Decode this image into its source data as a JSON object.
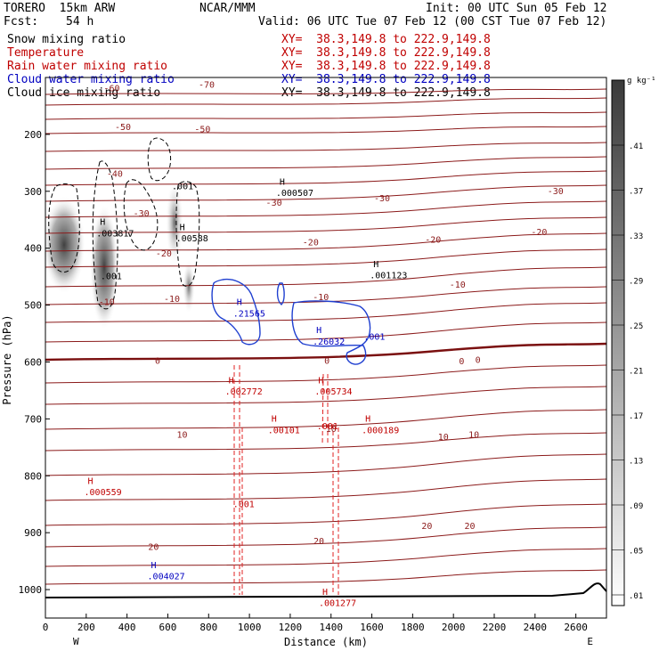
{
  "header": {
    "model": "TORERO  15km ARW",
    "org": "NCAR/MMM",
    "init": "Init: 00 UTC Sun 05 Feb 12",
    "fcst_label": "Fcst:",
    "fcst_value": "54 h",
    "valid": "Valid: 06 UTC Tue 07 Feb 12 (00 CST Tue 07 Feb 12)",
    "fields": [
      {
        "name": "Snow mixing ratio",
        "xy": "XY=  38.3,149.8 to 222.9,149.8",
        "color": "#000000"
      },
      {
        "name": "Temperature",
        "xy": "XY=  38.3,149.8 to 222.9,149.8",
        "color": "#c00000"
      },
      {
        "name": "Rain water mixing ratio",
        "xy": "XY=  38.3,149.8 to 222.9,149.8",
        "color": "#c00000"
      },
      {
        "name": "Cloud water mixing ratio",
        "xy": "XY=  38.3,149.8 to 222.9,149.8",
        "color": "#0000c0"
      },
      {
        "name": "Cloud ice mixing ratio",
        "xy": "XY=  38.3,149.8 to 222.9,149.8",
        "color": "#000000"
      }
    ]
  },
  "chart_data": {
    "type": "contour-cross-section",
    "xlabel": "Distance (km)",
    "ylabel": "Pressure (hPa)",
    "xlim": [
      0,
      2750
    ],
    "ylim": [
      100,
      1050
    ],
    "x_ticks": [
      0,
      200,
      400,
      600,
      800,
      1000,
      1200,
      1400,
      1600,
      1800,
      2000,
      2200,
      2400,
      2600
    ],
    "y_ticks": [
      200,
      300,
      400,
      500,
      600,
      700,
      800,
      900,
      1000
    ],
    "endpoint_labels": [
      {
        "x": 150,
        "text": "W"
      },
      {
        "x": 2670,
        "text": "E"
      }
    ],
    "colorbar": {
      "unit": "g kg⁻¹",
      "ticks": [
        ".01",
        ".05",
        ".09",
        ".13",
        ".17",
        ".21",
        ".25",
        ".29",
        ".33",
        ".37",
        ".41"
      ]
    },
    "temperature_labels": [
      {
        "text": "-70",
        "x": 790,
        "p": 112
      },
      {
        "text": "-60",
        "x": 325,
        "p": 118
      },
      {
        "text": "-50",
        "x": 380,
        "p": 186
      },
      {
        "text": "-50",
        "x": 770,
        "p": 190
      },
      {
        "text": "-40",
        "x": 340,
        "p": 268
      },
      {
        "text": "-30",
        "x": 470,
        "p": 338
      },
      {
        "text": "-30",
        "x": 1120,
        "p": 319
      },
      {
        "text": "-30",
        "x": 1650,
        "p": 311
      },
      {
        "text": "-30",
        "x": 2500,
        "p": 299
      },
      {
        "text": "-20",
        "x": 580,
        "p": 408
      },
      {
        "text": "-20",
        "x": 1300,
        "p": 389
      },
      {
        "text": "-20",
        "x": 1900,
        "p": 384
      },
      {
        "text": "-20",
        "x": 2420,
        "p": 371
      },
      {
        "text": "-10",
        "x": 300,
        "p": 494
      },
      {
        "text": "-10",
        "x": 620,
        "p": 488
      },
      {
        "text": "-10",
        "x": 1350,
        "p": 485
      },
      {
        "text": "-10",
        "x": 2020,
        "p": 463
      },
      {
        "text": "0",
        "x": 550,
        "p": 597
      },
      {
        "text": "0",
        "x": 1380,
        "p": 597
      },
      {
        "text": "0",
        "x": 2040,
        "p": 598
      },
      {
        "text": "0",
        "x": 2120,
        "p": 595
      },
      {
        "text": "10",
        "x": 670,
        "p": 727
      },
      {
        "text": "10",
        "x": 1400,
        "p": 717
      },
      {
        "text": "10",
        "x": 1950,
        "p": 731
      },
      {
        "text": "10",
        "x": 2100,
        "p": 727
      },
      {
        "text": "20",
        "x": 530,
        "p": 924
      },
      {
        "text": "20",
        "x": 1340,
        "p": 914
      },
      {
        "text": "20",
        "x": 1870,
        "p": 887
      },
      {
        "text": "20",
        "x": 2080,
        "p": 887
      }
    ],
    "maxima_labels": [
      {
        "text": ".003817",
        "x": 250,
        "p": 373,
        "hp": 353,
        "color": "#000000"
      },
      {
        "text": ".001",
        "x": 270,
        "p": 448,
        "hp": null,
        "color": "#000000"
      },
      {
        "text": ".001",
        "x": 620,
        "p": 290,
        "hp": null,
        "color": "#000000"
      },
      {
        "text": ".00588",
        "x": 640,
        "p": 382,
        "hp": 362,
        "color": "#000000"
      },
      {
        "text": ".000507",
        "x": 1130,
        "p": 302,
        "hp": 282,
        "color": "#000000"
      },
      {
        "text": ".001123",
        "x": 1590,
        "p": 447,
        "hp": 427,
        "color": "#000000"
      },
      {
        "text": ".21565",
        "x": 920,
        "p": 514,
        "hp": 494,
        "color": "#0000c0"
      },
      {
        "text": ".26032",
        "x": 1310,
        "p": 563,
        "hp": 543,
        "color": "#0000c0"
      },
      {
        "text": ".001",
        "x": 1560,
        "p": 555,
        "hp": null,
        "color": "#0000c0"
      },
      {
        "text": ".002772",
        "x": 880,
        "p": 651,
        "hp": 631,
        "color": "#c00000"
      },
      {
        "text": ".005734",
        "x": 1320,
        "p": 651,
        "hp": 631,
        "color": "#c00000"
      },
      {
        "text": ".00101",
        "x": 1090,
        "p": 719,
        "hp": 699,
        "color": "#c00000"
      },
      {
        "text": ".001",
        "x": 1330,
        "p": 712,
        "hp": null,
        "color": "#c00000"
      },
      {
        "text": ".000189",
        "x": 1550,
        "p": 719,
        "hp": 699,
        "color": "#c00000"
      },
      {
        "text": ".000559",
        "x": 190,
        "p": 828,
        "hp": 808,
        "color": "#c00000"
      },
      {
        "text": ".001",
        "x": 920,
        "p": 849,
        "hp": null,
        "color": "#c00000"
      },
      {
        "text": ".004027",
        "x": 500,
        "p": 976,
        "hp": 956,
        "color": "#0000c0"
      },
      {
        "text": ".001277",
        "x": 1340,
        "p": 1023,
        "hp": 1003,
        "color": "#c00000"
      }
    ]
  }
}
